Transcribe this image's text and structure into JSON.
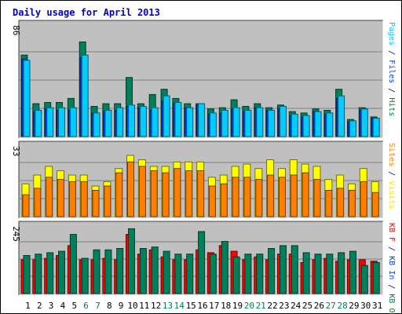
{
  "chart_data": {
    "type": "bar",
    "title": "Daily usage for April 2013",
    "categories": [
      "1",
      "2",
      "3",
      "4",
      "5",
      "6",
      "7",
      "8",
      "9",
      "10",
      "11",
      "12",
      "13",
      "14",
      "15",
      "16",
      "17",
      "18",
      "19",
      "20",
      "21",
      "22",
      "23",
      "24",
      "25",
      "26",
      "27",
      "28",
      "29",
      "30",
      "31"
    ],
    "weekend_days": [
      "6",
      "7",
      "13",
      "14",
      "20",
      "21",
      "27",
      "28"
    ],
    "panels": [
      {
        "axis_max_label": "86",
        "ymax": 86,
        "side_labels": [
          {
            "text": "Pages",
            "color": "#00ccff"
          },
          {
            "text": " / ",
            "color": "#000080"
          },
          {
            "text": "Files",
            "color": "#0040ff"
          },
          {
            "text": " / ",
            "color": "#000080"
          },
          {
            "text": "Hits",
            "color": "#008040"
          }
        ],
        "series": [
          {
            "name": "Hits",
            "color": "#00805a",
            "values": [
              62,
              25,
              26,
              26,
              29,
              72,
              23,
              25,
              25,
              45,
              25,
              32,
              36,
              29,
              25,
              25,
              21,
              22,
              28,
              23,
              25,
              22,
              24,
              19,
              18,
              21,
              20,
              36,
              13,
              22,
              15
            ]
          },
          {
            "name": "Files",
            "color": "#0040ff",
            "values": [
              59,
              19,
              21,
              20,
              20,
              60,
              18,
              19,
              20,
              23,
              22,
              20,
              27,
              25,
              22,
              24,
              17,
              18,
              21,
              19,
              22,
              20,
              21,
              16,
              15,
              19,
              17,
              29,
              11,
              20,
              14
            ]
          },
          {
            "name": "Pages",
            "color": "#00ccff",
            "values": [
              58,
              20,
              22,
              22,
              22,
              62,
              18,
              20,
              22,
              24,
              23,
              22,
              31,
              26,
              22,
              25,
              18,
              20,
              22,
              20,
              22,
              20,
              23,
              17,
              16,
              19,
              18,
              31,
              12,
              21,
              14
            ]
          }
        ]
      },
      {
        "axis_max_label": "33",
        "ymax": 33,
        "side_labels": [
          {
            "text": "Sites",
            "color": "#ff8000"
          },
          {
            "text": " / ",
            "color": "#000080"
          },
          {
            "text": "Visits",
            "color": "#ffe000"
          }
        ],
        "series": [
          {
            "name": "Visits",
            "color": "#ffff00",
            "values": [
              15,
              19,
              23,
              21,
              19,
              19,
              14,
              16,
              22,
              28,
              26,
              23,
              23,
              25,
              25,
              25,
              18,
              19,
              23,
              24,
              22,
              26,
              22,
              26,
              24,
              23,
              17,
              19,
              15,
              22,
              16
            ]
          },
          {
            "name": "Sites",
            "color": "#ff8000",
            "values": [
              10,
              13,
              18,
              17,
              16,
              16,
              12,
              14,
              20,
              25,
              23,
              21,
              20,
              22,
              21,
              21,
              14,
              15,
              18,
              18,
              17,
              19,
              18,
              19,
              20,
              17,
              12,
              13,
              12,
              16,
              11
            ]
          }
        ]
      },
      {
        "axis_max_label": "245",
        "ymax": 245,
        "side_labels": [
          {
            "text": "KB F",
            "color": "#ff0000"
          },
          {
            "text": " / ",
            "color": "#000080"
          },
          {
            "text": "KB In",
            "color": "#0040ff"
          },
          {
            "text": " / ",
            "color": "#000080"
          },
          {
            "text": "KB Out",
            "color": "#008040"
          }
        ],
        "series": [
          {
            "name": "KB F",
            "color": "#ff0000",
            "values": [
              120,
              120,
              125,
              135,
              170,
              120,
              120,
              125,
              120,
              210,
              140,
              155,
              130,
              120,
              120,
              155,
              145,
              170,
              150,
              120,
              130,
              120,
              140,
              140,
              110,
              120,
              125,
              115,
              120,
              120,
              115
            ]
          },
          {
            "name": "KB In",
            "color": "#0040ff",
            "values": [
              0,
              0,
              0,
              0,
              0,
              0,
              0,
              0,
              0,
              0,
              0,
              0,
              0,
              0,
              0,
              0,
              0,
              0,
              0,
              0,
              0,
              0,
              0,
              0,
              0,
              0,
              0,
              0,
              0,
              0,
              0
            ]
          },
          {
            "name": "KB Out",
            "color": "#00805a",
            "values": [
              135,
              140,
              145,
              150,
              210,
              125,
              155,
              155,
              160,
              230,
              160,
              165,
              150,
              140,
              140,
              220,
              140,
              185,
              130,
              140,
              140,
              160,
              170,
              170,
              145,
              140,
              140,
              145,
              150,
              100,
              110
            ]
          }
        ]
      }
    ]
  }
}
